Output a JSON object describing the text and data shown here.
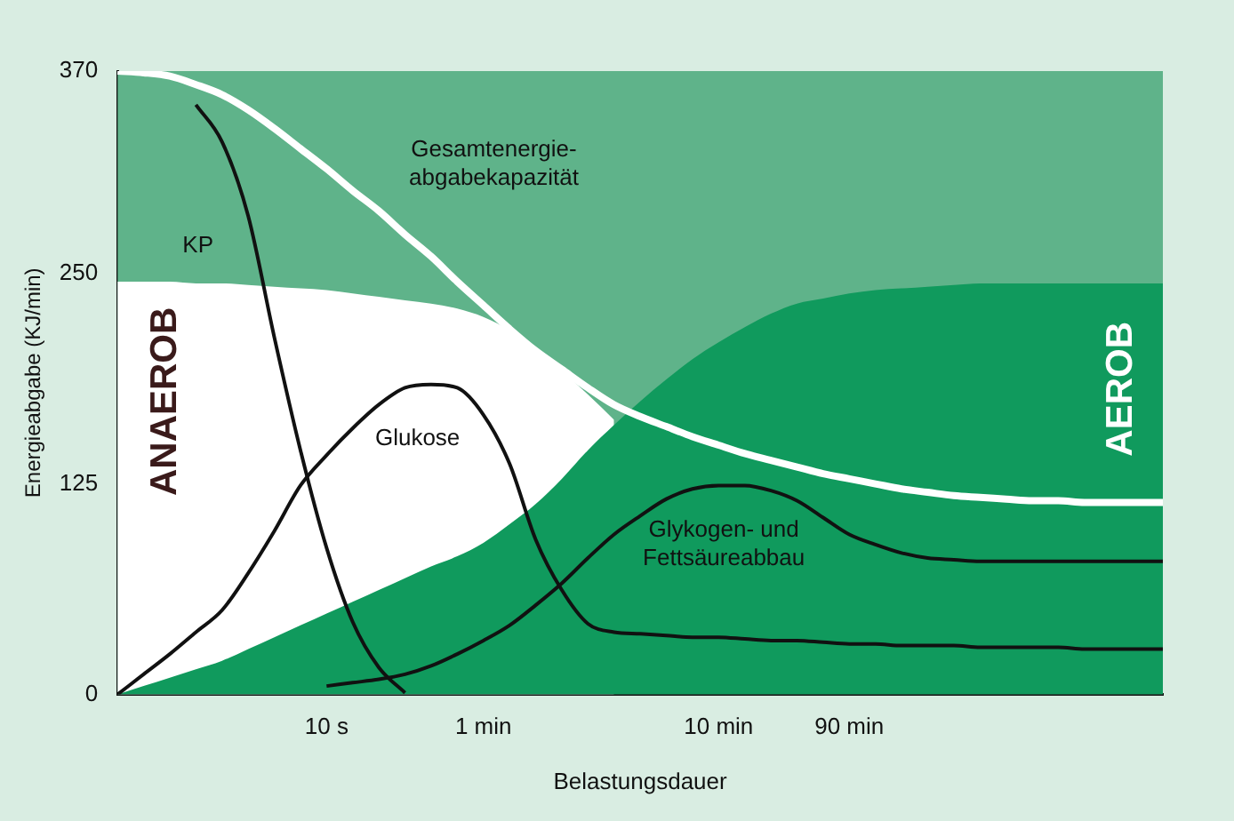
{
  "chart_data": {
    "type": "line",
    "xlabel": "Belastungsdauer",
    "ylabel": "Energieabgabe (KJ/min)",
    "ylim": [
      0,
      370
    ],
    "categories": [
      null,
      null,
      null,
      null,
      null,
      null,
      null,
      null,
      "10 s",
      null,
      null,
      null,
      null,
      null,
      "1 min",
      null,
      null,
      null,
      null,
      null,
      null,
      null,
      null,
      "10 min",
      null,
      null,
      null,
      null,
      "90 min",
      null,
      null,
      null,
      null,
      null,
      null,
      null,
      null,
      null,
      null,
      null,
      null
    ],
    "yticks": [
      0,
      125,
      250,
      370
    ],
    "grid": false,
    "legend": false,
    "marker": "none",
    "line_style": "solid",
    "series": [
      {
        "type": "area",
        "color": "#5fb38a",
        "values": [
          370,
          370,
          370,
          370,
          370,
          370,
          370,
          370,
          370,
          370,
          370,
          370,
          370,
          370,
          370,
          370,
          370,
          370,
          370,
          370,
          370,
          370,
          370,
          370,
          370,
          370,
          370,
          370,
          370,
          370,
          370,
          370,
          370,
          370,
          370,
          370,
          370,
          370,
          370,
          370,
          370
        ]
      },
      {
        "type": "area",
        "color": "#ffffff",
        "values": [
          245,
          245,
          245,
          244,
          244,
          243,
          242,
          241,
          240,
          238,
          236,
          234,
          232,
          229,
          224,
          216,
          205,
          192,
          178,
          163,
          null,
          null,
          null,
          null,
          null,
          null,
          null,
          null,
          null,
          null,
          null,
          null,
          null,
          null,
          null,
          null,
          null,
          null,
          null,
          null,
          null
        ]
      },
      {
        "type": "area",
        "color": "#109a5d",
        "values": [
          0,
          5,
          10,
          15,
          20,
          27,
          34,
          41,
          48,
          55,
          62,
          69,
          76,
          82,
          90,
          101,
          113,
          128,
          145,
          160,
          174,
          187,
          199,
          209,
          218,
          226,
          232,
          235,
          238,
          240,
          241,
          242,
          243,
          244,
          244,
          244,
          244,
          244,
          244,
          244,
          244
        ]
      },
      {
        "type": "line",
        "color": "#ffffff",
        "values": [
          370,
          369,
          367,
          362,
          356,
          347,
          336,
          324,
          312,
          299,
          287,
          273,
          260,
          245,
          231,
          217,
          204,
          193,
          182,
          172,
          165,
          159,
          153,
          148,
          143,
          139,
          135,
          131,
          128,
          125,
          122,
          120,
          118,
          117,
          116,
          115,
          115,
          114,
          114,
          114,
          114
        ]
      },
      {
        "type": "line",
        "color": "#111111",
        "values": [
          null,
          null,
          null,
          350,
          328,
          284,
          212,
          145,
          87,
          43,
          16,
          1,
          null,
          null,
          null,
          null,
          null,
          null,
          null,
          null,
          null,
          null,
          null,
          null,
          null,
          null,
          null,
          null,
          null,
          null,
          null,
          null,
          null,
          null,
          null,
          null,
          null,
          null,
          null,
          null,
          null
        ]
      },
      {
        "type": "line",
        "color": "#111111",
        "values": [
          0,
          12,
          24,
          37,
          50,
          72,
          97,
          124,
          142,
          158,
          172,
          182,
          184,
          182,
          166,
          137,
          92,
          62,
          42,
          37,
          36,
          35,
          34,
          34,
          33,
          32,
          32,
          31,
          30,
          30,
          29,
          29,
          29,
          28,
          28,
          28,
          28,
          27,
          27,
          27,
          27
        ]
      },
      {
        "type": "line",
        "color": "#111111",
        "values": [
          null,
          null,
          null,
          null,
          null,
          null,
          null,
          null,
          5,
          7,
          9,
          12,
          17,
          24,
          32,
          41,
          53,
          66,
          81,
          95,
          106,
          116,
          122,
          124,
          124,
          121,
          115,
          105,
          95,
          89,
          84,
          81,
          80,
          79,
          79,
          79,
          79,
          79,
          79,
          79,
          79
        ]
      }
    ],
    "annotations": [
      "ANAEROB",
      "AEROB",
      "Gesamtenergie-\nabgabekapazität",
      "KP",
      "Glukose",
      "Glykogen- und\nFettsäureabbau"
    ]
  }
}
